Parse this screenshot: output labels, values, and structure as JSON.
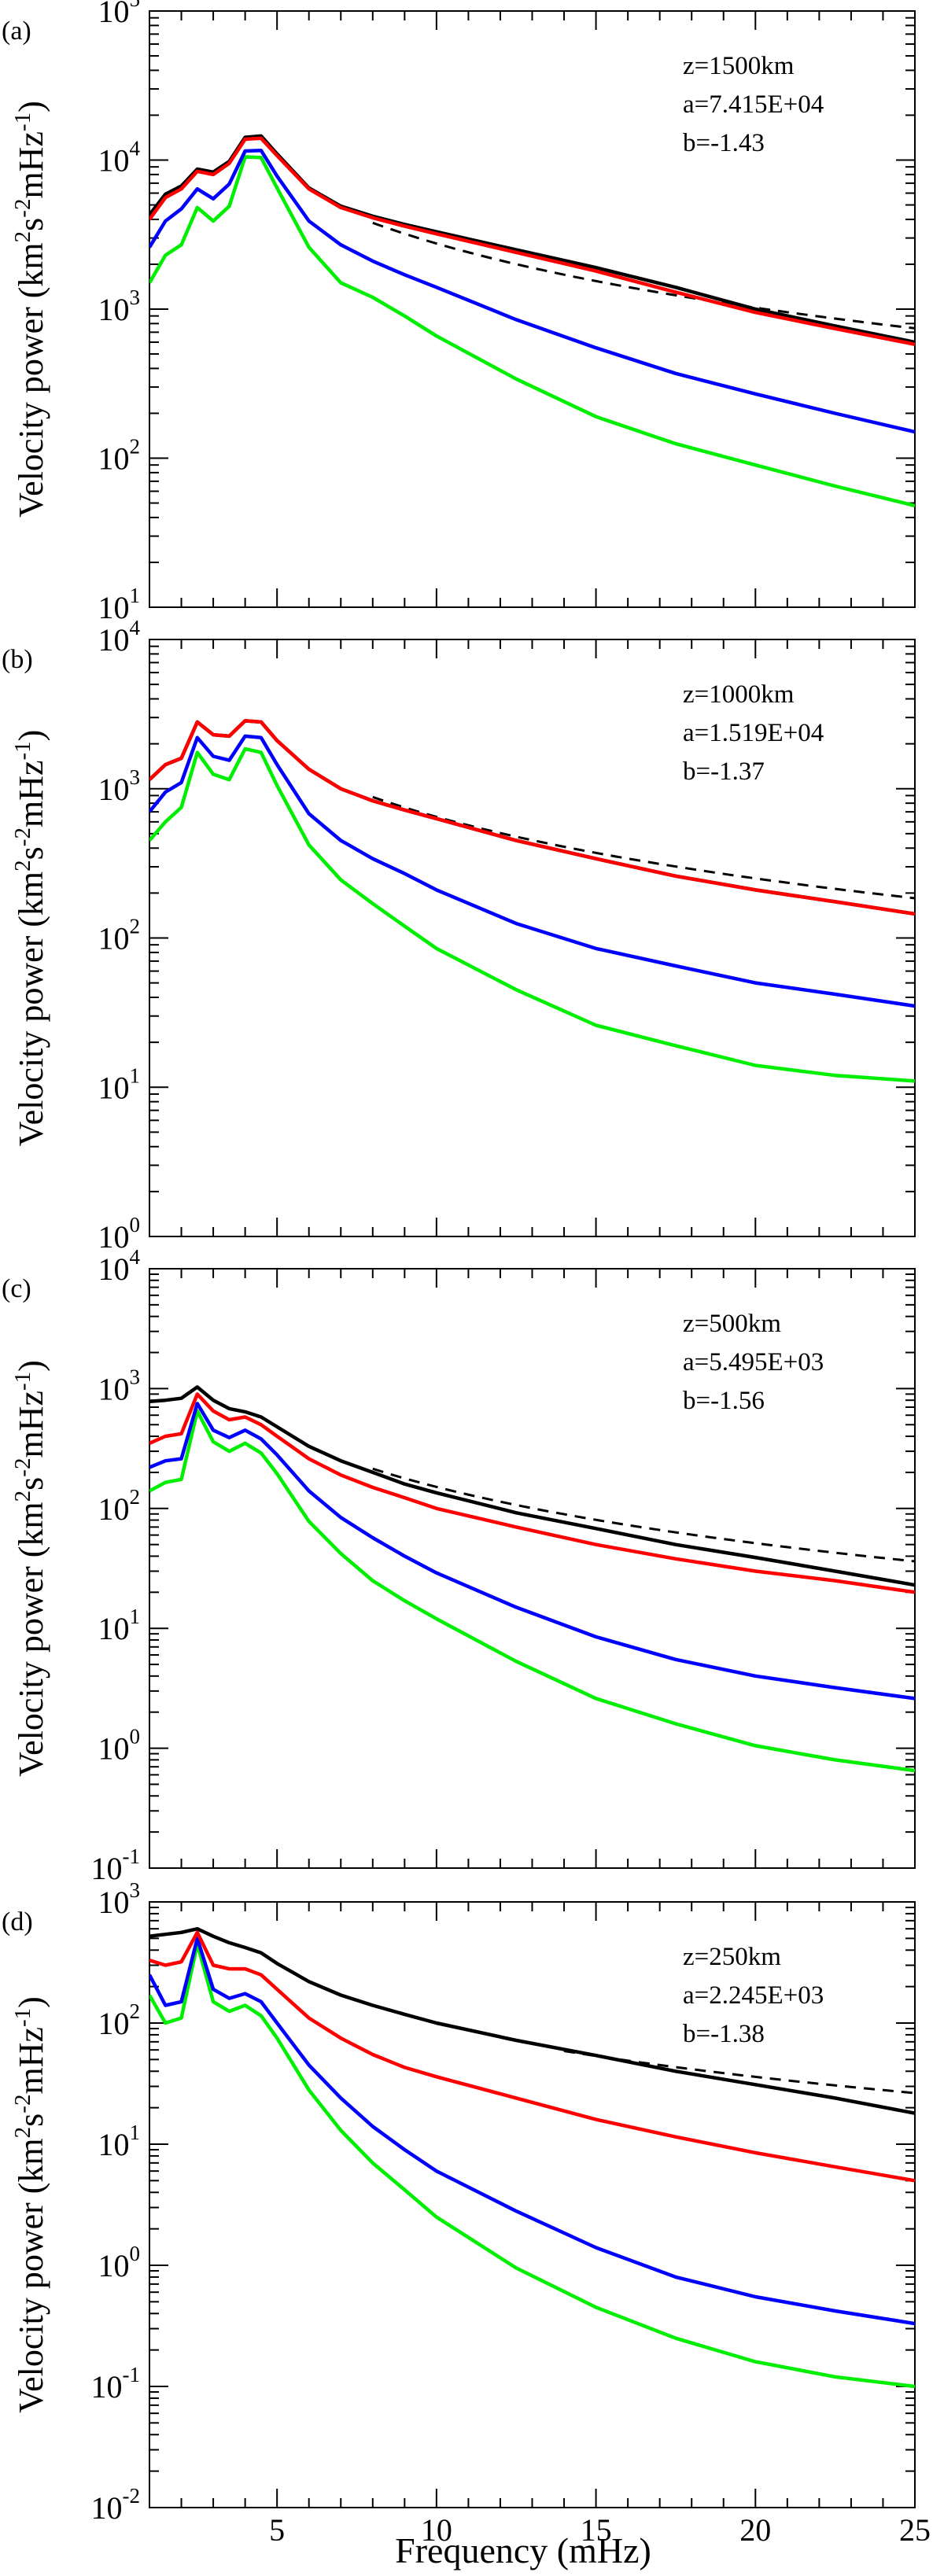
{
  "figure": {
    "xlabel": "Frequency (mHz)",
    "x_ticks": [
      5,
      10,
      15,
      20,
      25
    ],
    "xlim": [
      1,
      25
    ]
  },
  "colors": {
    "black": "#000000",
    "red": "#ff0000",
    "blue": "#0000ff",
    "green": "#00ee00",
    "fit": "#000000"
  },
  "chart_data": [
    {
      "type": "line",
      "panel": "(a)",
      "ylabel": {
        "pre": "Velocity power (km",
        "sup1": "2",
        "mid1": "s",
        "sup2": "-2",
        "mid2": "mHz",
        "sup3": "-1",
        "post": ")"
      },
      "yscale": "log",
      "ylim_exp": [
        1,
        5
      ],
      "y_tick_exponents": [
        1,
        2,
        3,
        4,
        5
      ],
      "annotations": [
        "z=1500km",
        "a=7.415E+04",
        "b=-1.43"
      ],
      "fit": {
        "a": 74150,
        "b": -1.43,
        "x_range": [
          8,
          25
        ],
        "style": "dashed"
      },
      "x": [
        1.0,
        1.5,
        2.0,
        2.5,
        3.0,
        3.5,
        4.0,
        4.5,
        5.0,
        6.0,
        7.0,
        8.0,
        9.0,
        10.0,
        12.5,
        15.0,
        17.5,
        20.0,
        22.5,
        25.0
      ],
      "series": [
        {
          "name": "black",
          "color": "black",
          "values": [
            4300,
            5900,
            6700,
            8700,
            8300,
            9800,
            14200,
            14500,
            11000,
            6500,
            4900,
            4200,
            3700,
            3300,
            2500,
            1900,
            1400,
            1000,
            770,
            600
          ]
        },
        {
          "name": "red",
          "color": "red",
          "values": [
            4000,
            5600,
            6400,
            8400,
            8000,
            9500,
            13800,
            14000,
            10700,
            6400,
            4800,
            4100,
            3600,
            3200,
            2400,
            1800,
            1300,
            950,
            740,
            580
          ]
        },
        {
          "name": "blue",
          "color": "blue",
          "values": [
            2600,
            3900,
            4700,
            6400,
            5500,
            6900,
            11500,
            11600,
            7800,
            3900,
            2700,
            2100,
            1700,
            1400,
            850,
            550,
            370,
            270,
            200,
            150
          ]
        },
        {
          "name": "green",
          "color": "green",
          "values": [
            1500,
            2300,
            2700,
            4800,
            3900,
            4900,
            10500,
            10400,
            6500,
            2600,
            1500,
            1200,
            900,
            660,
            340,
            190,
            125,
            90,
            65,
            48
          ]
        }
      ]
    },
    {
      "type": "line",
      "panel": "(b)",
      "ylabel": {
        "pre": "Velocity power (km",
        "sup1": "2",
        "mid1": "s",
        "sup2": "-2",
        "mid2": "mHz",
        "sup3": "-1",
        "post": ")"
      },
      "yscale": "log",
      "ylim_exp": [
        0,
        4
      ],
      "y_tick_exponents": [
        0,
        1,
        2,
        3,
        4
      ],
      "annotations": [
        "z=1000km",
        "a=1.519E+04",
        "b=-1.37"
      ],
      "fit": {
        "a": 15190,
        "b": -1.37,
        "x_range": [
          8,
          25
        ],
        "style": "dashed"
      },
      "x": [
        1.0,
        1.5,
        2.0,
        2.5,
        3.0,
        3.5,
        4.0,
        4.5,
        5.0,
        6.0,
        7.0,
        8.0,
        9.0,
        10.0,
        12.5,
        15.0,
        17.5,
        20.0,
        22.5,
        25.0
      ],
      "series": [
        {
          "name": "black",
          "color": "black",
          "values": [
            1150,
            1450,
            1600,
            2800,
            2300,
            2250,
            2850,
            2800,
            2100,
            1350,
            1000,
            830,
            720,
            630,
            450,
            340,
            260,
            210,
            175,
            145
          ]
        },
        {
          "name": "red",
          "color": "red",
          "values": [
            1150,
            1450,
            1600,
            2800,
            2300,
            2250,
            2850,
            2800,
            2100,
            1350,
            1000,
            830,
            720,
            630,
            450,
            340,
            260,
            210,
            175,
            145
          ]
        },
        {
          "name": "blue",
          "color": "blue",
          "values": [
            700,
            950,
            1100,
            2200,
            1650,
            1550,
            2250,
            2200,
            1450,
            680,
            450,
            340,
            270,
            210,
            125,
            85,
            65,
            50,
            42,
            35
          ]
        },
        {
          "name": "green",
          "color": "green",
          "values": [
            450,
            600,
            750,
            1750,
            1250,
            1150,
            1850,
            1750,
            1050,
            420,
            245,
            170,
            120,
            85,
            45,
            26,
            19,
            14,
            12,
            11
          ]
        }
      ]
    },
    {
      "type": "line",
      "panel": "(c)",
      "ylabel": {
        "pre": "Velocity power (km",
        "sup1": "2",
        "mid1": "s",
        "sup2": "-2",
        "mid2": "mHz",
        "sup3": "-1",
        "post": ")"
      },
      "yscale": "log",
      "ylim_exp": [
        -1,
        4
      ],
      "y_tick_exponents": [
        -1,
        0,
        1,
        2,
        3,
        4
      ],
      "annotations": [
        "z=500km",
        "a=5.495E+03",
        "b=-1.56"
      ],
      "fit": {
        "a": 5495,
        "b": -1.56,
        "x_range": [
          8,
          25
        ],
        "style": "dashed"
      },
      "x": [
        1.0,
        1.5,
        2.0,
        2.5,
        3.0,
        3.5,
        4.0,
        4.5,
        5.0,
        6.0,
        7.0,
        8.0,
        9.0,
        10.0,
        12.5,
        15.0,
        17.5,
        20.0,
        22.5,
        25.0
      ],
      "series": [
        {
          "name": "black",
          "color": "black",
          "values": [
            780,
            800,
            830,
            1030,
            800,
            680,
            640,
            580,
            480,
            330,
            250,
            200,
            160,
            135,
            92,
            68,
            50,
            39,
            30,
            23
          ]
        },
        {
          "name": "red",
          "color": "red",
          "values": [
            350,
            400,
            420,
            900,
            650,
            550,
            580,
            500,
            400,
            260,
            190,
            150,
            123,
            100,
            70,
            50,
            38,
            30,
            25,
            20
          ]
        },
        {
          "name": "blue",
          "color": "blue",
          "values": [
            220,
            250,
            260,
            750,
            450,
            390,
            450,
            380,
            280,
            140,
            84,
            57,
            40,
            29,
            15,
            8.5,
            5.5,
            4.0,
            3.2,
            2.6
          ]
        },
        {
          "name": "green",
          "color": "green",
          "values": [
            140,
            165,
            175,
            650,
            360,
            300,
            350,
            290,
            195,
            78,
            42,
            25,
            17,
            12,
            5.3,
            2.6,
            1.6,
            1.05,
            0.8,
            0.65
          ]
        }
      ]
    },
    {
      "type": "line",
      "panel": "(d)",
      "ylabel": {
        "pre": "Velocity power (km",
        "sup1": "2",
        "mid1": "s",
        "sup2": "-2",
        "mid2": "mHz",
        "sup3": "-1",
        "post": ")"
      },
      "yscale": "log",
      "ylim_exp": [
        -2,
        3
      ],
      "y_tick_exponents": [
        -2,
        -1,
        0,
        1,
        2,
        3
      ],
      "annotations": [
        "z=250km",
        "a=2.245E+03",
        "b=-1.38"
      ],
      "fit": {
        "a": 2245,
        "b": -1.38,
        "x_range": [
          14,
          25
        ],
        "style": "dashed"
      },
      "x": [
        1.0,
        1.5,
        2.0,
        2.5,
        3.0,
        3.5,
        4.0,
        4.5,
        5.0,
        6.0,
        7.0,
        8.0,
        9.0,
        10.0,
        12.5,
        15.0,
        17.5,
        20.0,
        22.5,
        25.0
      ],
      "series": [
        {
          "name": "black",
          "color": "black",
          "values": [
            520,
            540,
            560,
            600,
            520,
            460,
            420,
            380,
            310,
            220,
            170,
            140,
            118,
            100,
            72,
            54,
            40,
            31,
            24,
            18
          ]
        },
        {
          "name": "red",
          "color": "red",
          "values": [
            330,
            300,
            320,
            560,
            300,
            280,
            280,
            250,
            190,
            110,
            75,
            55,
            43,
            36,
            24,
            16,
            11.5,
            8.5,
            6.5,
            5.0
          ]
        },
        {
          "name": "blue",
          "color": "blue",
          "values": [
            250,
            140,
            150,
            500,
            190,
            160,
            175,
            150,
            100,
            45,
            24,
            14,
            9,
            6,
            2.8,
            1.4,
            0.8,
            0.55,
            0.42,
            0.33
          ]
        },
        {
          "name": "green",
          "color": "green",
          "values": [
            170,
            100,
            110,
            450,
            150,
            125,
            140,
            115,
            75,
            28,
            13,
            7,
            4.2,
            2.5,
            0.95,
            0.45,
            0.25,
            0.16,
            0.12,
            0.1
          ]
        }
      ]
    }
  ]
}
